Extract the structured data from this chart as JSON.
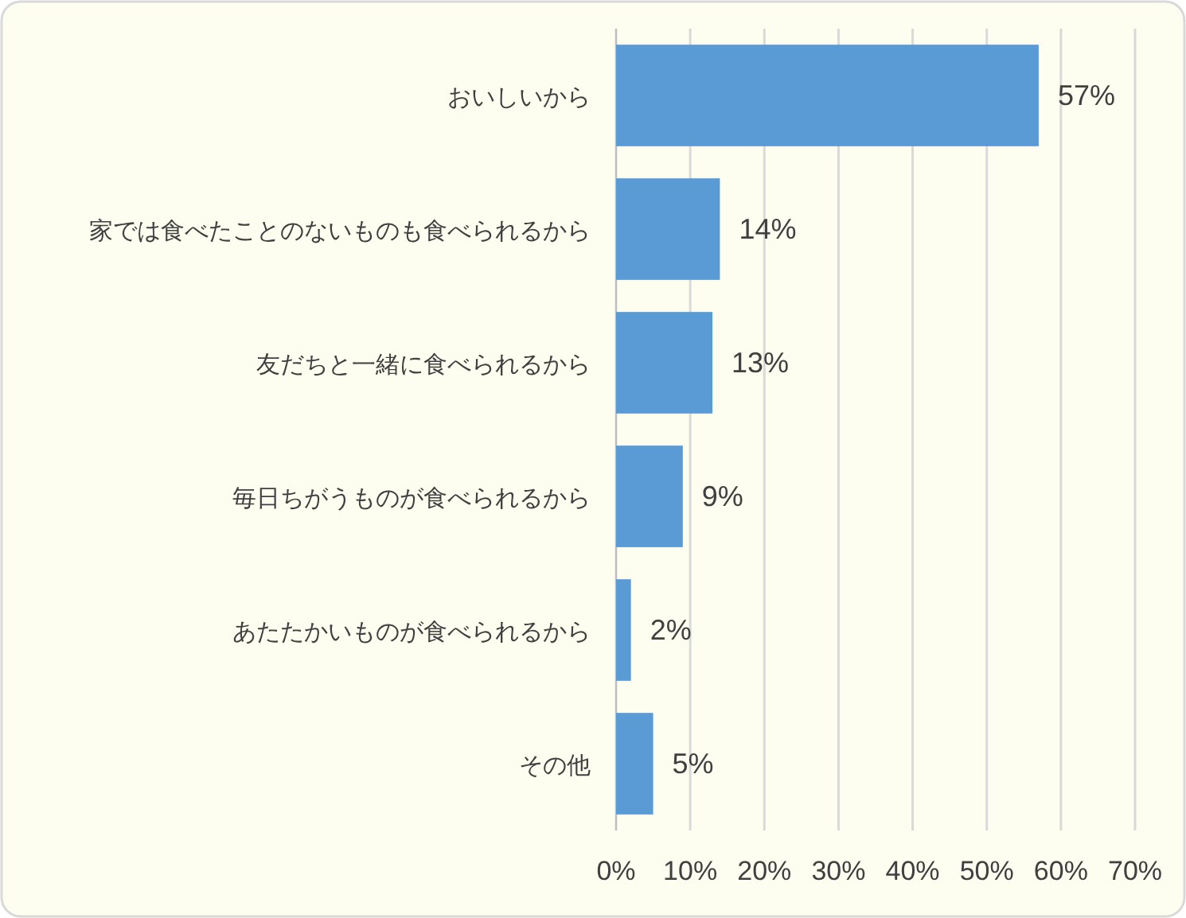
{
  "chart_data": {
    "type": "bar",
    "orientation": "horizontal",
    "categories": [
      "おいしいから",
      "家では食べたことのないものも食べられるから",
      "友だちと一緒に食べられるから",
      "毎日ちがうものが食べられるから",
      "あたたかいものが食べられるから",
      "その他"
    ],
    "values": [
      57,
      14,
      13,
      9,
      2,
      5
    ],
    "value_labels": [
      "57%",
      "14%",
      "13%",
      "9%",
      "2%",
      "5%"
    ],
    "color": "#5b9bd5",
    "xlim": [
      0,
      70
    ],
    "xticks": [
      {
        "value": 0,
        "label": "0%"
      },
      {
        "value": 10,
        "label": "10%"
      },
      {
        "value": 20,
        "label": "20%"
      },
      {
        "value": 30,
        "label": "30%"
      },
      {
        "value": 40,
        "label": "40%"
      },
      {
        "value": 50,
        "label": "50%"
      },
      {
        "value": 60,
        "label": "60%"
      },
      {
        "value": 70,
        "label": "70%"
      }
    ],
    "grid": "x"
  }
}
